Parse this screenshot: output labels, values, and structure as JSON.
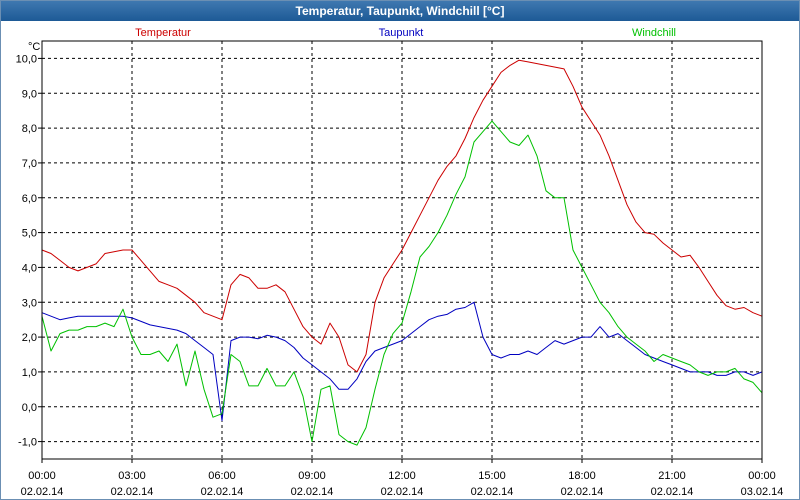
{
  "window": {
    "title": "Temperatur, Taupunkt, Windchill [°C]"
  },
  "chart_data": {
    "type": "line",
    "title": "Temperatur, Taupunkt, Windchill [°C]",
    "ylabel": "°C",
    "ylim": [
      -1.5,
      10.5
    ],
    "xlim": [
      0,
      24
    ],
    "grid": true,
    "y_ticks": [
      -1.0,
      0.0,
      1.0,
      2.0,
      3.0,
      4.0,
      5.0,
      6.0,
      7.0,
      8.0,
      9.0,
      10.0
    ],
    "y_tick_labels": [
      "-1,0",
      "0,0",
      "1,0",
      "2,0",
      "3,0",
      "4,0",
      "5,0",
      "6,0",
      "7,0",
      "8,0",
      "9,0",
      "10,0"
    ],
    "x_ticks": [
      {
        "x": 0,
        "time": "00:00",
        "date": "02.02.14"
      },
      {
        "x": 3,
        "time": "03:00",
        "date": "02.02.14"
      },
      {
        "x": 6,
        "time": "06:00",
        "date": "02.02.14"
      },
      {
        "x": 9,
        "time": "09:00",
        "date": "02.02.14"
      },
      {
        "x": 12,
        "time": "12:00",
        "date": "02.02.14"
      },
      {
        "x": 15,
        "time": "15:00",
        "date": "02.02.14"
      },
      {
        "x": 18,
        "time": "18:00",
        "date": "02.02.14"
      },
      {
        "x": 21,
        "time": "21:00",
        "date": "02.02.14"
      },
      {
        "x": 24,
        "time": "00:00",
        "date": "03.02.14"
      }
    ],
    "legend": [
      "Temperatur",
      "Taupunkt",
      "Windchill"
    ],
    "series": [
      {
        "name": "Temperatur",
        "color": "#cc0000",
        "x": [
          0,
          0.3,
          0.6,
          0.9,
          1.2,
          1.5,
          1.8,
          2.1,
          2.4,
          2.7,
          3.0,
          3.3,
          3.6,
          3.9,
          4.2,
          4.5,
          4.8,
          5.1,
          5.4,
          5.7,
          6.0,
          6.3,
          6.6,
          6.9,
          7.2,
          7.5,
          7.8,
          8.1,
          8.4,
          8.7,
          9.0,
          9.3,
          9.6,
          9.9,
          10.2,
          10.5,
          10.8,
          11.1,
          11.4,
          11.7,
          12.0,
          12.3,
          12.6,
          12.9,
          13.2,
          13.5,
          13.8,
          14.1,
          14.4,
          14.7,
          15.0,
          15.3,
          15.6,
          15.9,
          16.2,
          16.5,
          16.8,
          17.1,
          17.4,
          17.7,
          18.0,
          18.3,
          18.6,
          18.9,
          19.2,
          19.5,
          19.8,
          20.1,
          20.4,
          20.7,
          21.0,
          21.3,
          21.6,
          21.9,
          22.2,
          22.5,
          22.8,
          23.1,
          23.4,
          23.7,
          24.0
        ],
        "values": [
          4.5,
          4.4,
          4.2,
          4.0,
          3.9,
          4.0,
          4.1,
          4.4,
          4.45,
          4.5,
          4.5,
          4.2,
          3.9,
          3.6,
          3.5,
          3.4,
          3.2,
          3.0,
          2.7,
          2.6,
          2.5,
          3.5,
          3.8,
          3.7,
          3.4,
          3.4,
          3.5,
          3.3,
          2.8,
          2.3,
          2.0,
          1.8,
          2.4,
          2.0,
          1.2,
          1.0,
          1.5,
          3.0,
          3.7,
          4.1,
          4.5,
          5.0,
          5.5,
          6.0,
          6.5,
          6.9,
          7.2,
          7.7,
          8.3,
          8.8,
          9.2,
          9.6,
          9.8,
          9.95,
          9.9,
          9.85,
          9.8,
          9.75,
          9.7,
          9.2,
          8.6,
          8.2,
          7.8,
          7.2,
          6.5,
          5.8,
          5.3,
          5.0,
          4.95,
          4.7,
          4.5,
          4.3,
          4.35,
          4.0,
          3.6,
          3.2,
          2.9,
          2.8,
          2.85,
          2.7,
          2.6
        ]
      },
      {
        "name": "Taupunkt",
        "color": "#0000c0",
        "x": [
          0,
          0.3,
          0.6,
          0.9,
          1.2,
          1.5,
          1.8,
          2.1,
          2.4,
          2.7,
          3.0,
          3.3,
          3.6,
          3.9,
          4.2,
          4.5,
          4.8,
          5.1,
          5.4,
          5.7,
          6.0,
          6.3,
          6.6,
          6.9,
          7.2,
          7.5,
          7.8,
          8.1,
          8.4,
          8.7,
          9.0,
          9.3,
          9.6,
          9.9,
          10.2,
          10.5,
          10.8,
          11.1,
          11.4,
          11.7,
          12.0,
          12.3,
          12.6,
          12.9,
          13.2,
          13.5,
          13.8,
          14.1,
          14.4,
          14.7,
          15.0,
          15.3,
          15.6,
          15.9,
          16.2,
          16.5,
          16.8,
          17.1,
          17.4,
          17.7,
          18.0,
          18.3,
          18.6,
          18.9,
          19.2,
          19.5,
          19.8,
          20.1,
          20.4,
          20.7,
          21.0,
          21.3,
          21.6,
          21.9,
          22.2,
          22.5,
          22.8,
          23.1,
          23.4,
          23.7,
          24.0
        ],
        "values": [
          2.7,
          2.6,
          2.5,
          2.55,
          2.6,
          2.6,
          2.6,
          2.6,
          2.6,
          2.6,
          2.55,
          2.45,
          2.35,
          2.3,
          2.25,
          2.2,
          2.1,
          1.9,
          1.7,
          1.5,
          -0.4,
          1.9,
          2.0,
          2.0,
          1.95,
          2.05,
          2.0,
          1.9,
          1.7,
          1.4,
          1.2,
          1.0,
          0.8,
          0.5,
          0.5,
          0.8,
          1.3,
          1.6,
          1.7,
          1.8,
          1.9,
          2.1,
          2.3,
          2.5,
          2.6,
          2.65,
          2.8,
          2.85,
          3.0,
          2.0,
          1.5,
          1.4,
          1.5,
          1.5,
          1.6,
          1.5,
          1.7,
          1.9,
          1.8,
          1.9,
          2.0,
          2.0,
          2.3,
          2.0,
          2.1,
          1.9,
          1.7,
          1.5,
          1.4,
          1.3,
          1.2,
          1.1,
          1.0,
          1.0,
          1.0,
          0.9,
          0.9,
          1.0,
          1.0,
          0.9,
          1.0
        ]
      },
      {
        "name": "Windchill",
        "color": "#00c000",
        "x": [
          0,
          0.3,
          0.6,
          0.9,
          1.2,
          1.5,
          1.8,
          2.1,
          2.4,
          2.7,
          3.0,
          3.3,
          3.6,
          3.9,
          4.2,
          4.5,
          4.8,
          5.1,
          5.4,
          5.7,
          6.0,
          6.3,
          6.6,
          6.9,
          7.2,
          7.5,
          7.8,
          8.1,
          8.4,
          8.7,
          9.0,
          9.3,
          9.6,
          9.9,
          10.2,
          10.5,
          10.8,
          11.1,
          11.4,
          11.7,
          12.0,
          12.3,
          12.6,
          12.9,
          13.2,
          13.5,
          13.8,
          14.1,
          14.4,
          14.7,
          15.0,
          15.3,
          15.6,
          15.9,
          16.2,
          16.5,
          16.8,
          17.1,
          17.4,
          17.7,
          18.0,
          18.3,
          18.6,
          18.9,
          19.2,
          19.5,
          19.8,
          20.1,
          20.4,
          20.7,
          21.0,
          21.3,
          21.6,
          21.9,
          22.2,
          22.5,
          22.8,
          23.1,
          23.4,
          23.7,
          24.0
        ],
        "values": [
          2.6,
          1.6,
          2.1,
          2.2,
          2.2,
          2.3,
          2.3,
          2.4,
          2.3,
          2.8,
          2.0,
          1.5,
          1.5,
          1.6,
          1.3,
          1.8,
          0.6,
          1.6,
          0.5,
          -0.3,
          -0.2,
          1.5,
          1.3,
          0.6,
          0.6,
          1.1,
          0.6,
          0.6,
          1.0,
          0.3,
          -1.0,
          0.5,
          0.6,
          -0.8,
          -1.0,
          -1.1,
          -0.6,
          0.5,
          1.5,
          2.1,
          2.4,
          3.3,
          4.3,
          4.6,
          5.0,
          5.5,
          6.1,
          6.6,
          7.6,
          7.9,
          8.2,
          7.9,
          7.6,
          7.5,
          7.8,
          7.2,
          6.2,
          6.0,
          6.0,
          4.5,
          4.0,
          3.5,
          3.0,
          2.7,
          2.3,
          2.0,
          1.8,
          1.6,
          1.3,
          1.5,
          1.4,
          1.3,
          1.2,
          1.0,
          0.9,
          1.0,
          1.0,
          1.1,
          0.8,
          0.7,
          0.4
        ]
      }
    ]
  }
}
